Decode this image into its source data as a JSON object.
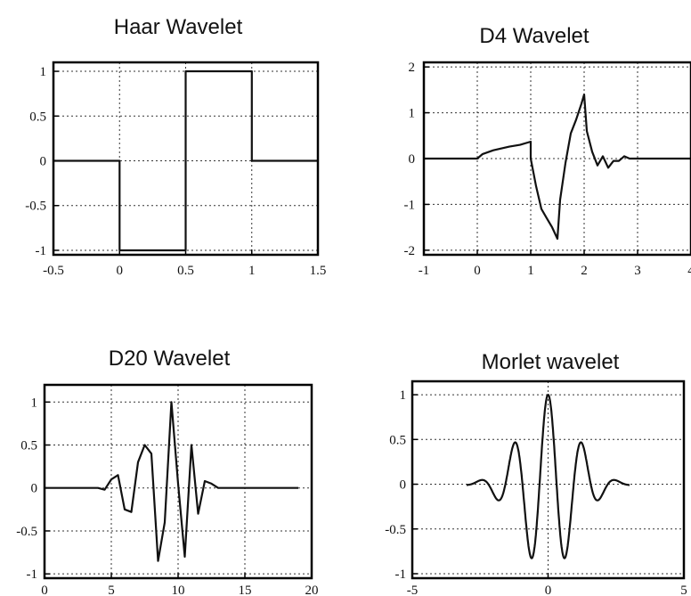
{
  "chart_data": [
    {
      "type": "line",
      "title": "Haar Wavelet",
      "xlim": [
        -0.5,
        1.5
      ],
      "ylim": [
        -1.05,
        1.1
      ],
      "grid": true,
      "xticks": [
        -0.5,
        0,
        0.5,
        1,
        1.5
      ],
      "xtick_labels": [
        "-0.5",
        "0",
        "0.5",
        "1",
        "1.5"
      ],
      "yticks": [
        -1,
        -0.5,
        0,
        0.5,
        1
      ],
      "ytick_labels": [
        "-1",
        "-0.5",
        "0",
        "0.5",
        "1"
      ],
      "series": [
        {
          "x": [
            -0.5,
            0,
            0,
            0.5,
            0.5,
            1,
            1,
            1.5
          ],
          "y": [
            0,
            0,
            -1,
            -1,
            1,
            1,
            0,
            0
          ]
        }
      ]
    },
    {
      "type": "line",
      "title": "D4 Wavelet",
      "xlim": [
        -1,
        4
      ],
      "ylim": [
        -2.1,
        2.1
      ],
      "grid": true,
      "xticks": [
        -1,
        0,
        1,
        2,
        3,
        4
      ],
      "xtick_labels": [
        "-1",
        "0",
        "1",
        "2",
        "3",
        "4"
      ],
      "yticks": [
        -2,
        -1,
        0,
        1,
        2
      ],
      "ytick_labels": [
        "-2",
        "-1",
        "0",
        "1",
        "2"
      ],
      "series": [
        {
          "x": [
            -1,
            0,
            0.1,
            0.3,
            0.6,
            0.8,
            1.0,
            1.0,
            1.1,
            1.2,
            1.3,
            1.4,
            1.5,
            1.55,
            1.65,
            1.75,
            1.85,
            1.95,
            2.0,
            2.05,
            2.15,
            2.25,
            2.35,
            2.45,
            2.55,
            2.65,
            2.75,
            2.85,
            3.0,
            4.0
          ],
          "y": [
            0,
            0,
            0.1,
            0.18,
            0.26,
            0.3,
            0.37,
            0.0,
            -0.6,
            -1.1,
            -1.3,
            -1.5,
            -1.75,
            -0.9,
            -0.1,
            0.55,
            0.85,
            1.2,
            1.4,
            0.6,
            0.15,
            -0.15,
            0.05,
            -0.2,
            -0.05,
            -0.05,
            0.05,
            0.0,
            0,
            0
          ]
        }
      ]
    },
    {
      "type": "line",
      "title": "D20 Wavelet",
      "xlim": [
        0,
        20
      ],
      "ylim": [
        -1.05,
        1.2
      ],
      "grid": true,
      "xticks": [
        0,
        5,
        10,
        15,
        20
      ],
      "xtick_labels": [
        "0",
        "5",
        "10",
        "15",
        "20"
      ],
      "yticks": [
        -1,
        -0.5,
        0,
        0.5,
        1
      ],
      "ytick_labels": [
        "-1",
        "-0.5",
        "0",
        "0.5",
        "1"
      ],
      "series": [
        {
          "x": [
            0,
            4,
            4.5,
            5,
            5.5,
            6,
            6.5,
            7,
            7.5,
            8,
            8.5,
            9,
            9.5,
            10,
            10.5,
            11,
            11.5,
            12,
            12.5,
            13,
            14,
            19
          ],
          "y": [
            0,
            0,
            -0.02,
            0.1,
            0.15,
            -0.25,
            -0.28,
            0.3,
            0.5,
            0.4,
            -0.85,
            -0.4,
            1.0,
            0.05,
            -0.8,
            0.5,
            -0.3,
            0.08,
            0.05,
            0.0,
            0,
            0
          ]
        }
      ]
    },
    {
      "type": "line",
      "title": "Morlet wavelet",
      "xlim": [
        -5,
        5
      ],
      "ylim": [
        -1.05,
        1.15
      ],
      "grid": true,
      "xticks": [
        -5,
        0,
        5
      ],
      "xtick_labels": [
        "-5",
        "0",
        "5"
      ],
      "yticks": [
        -1,
        -0.5,
        0,
        0.5,
        1
      ],
      "ytick_labels": [
        "-1",
        "-0.5",
        "0",
        "0.5",
        "1"
      ],
      "series": [
        {
          "function": "morlet",
          "x_range": [
            -3,
            3
          ],
          "formula": "y = exp(-x^2/2) * cos(5x)"
        }
      ]
    }
  ]
}
